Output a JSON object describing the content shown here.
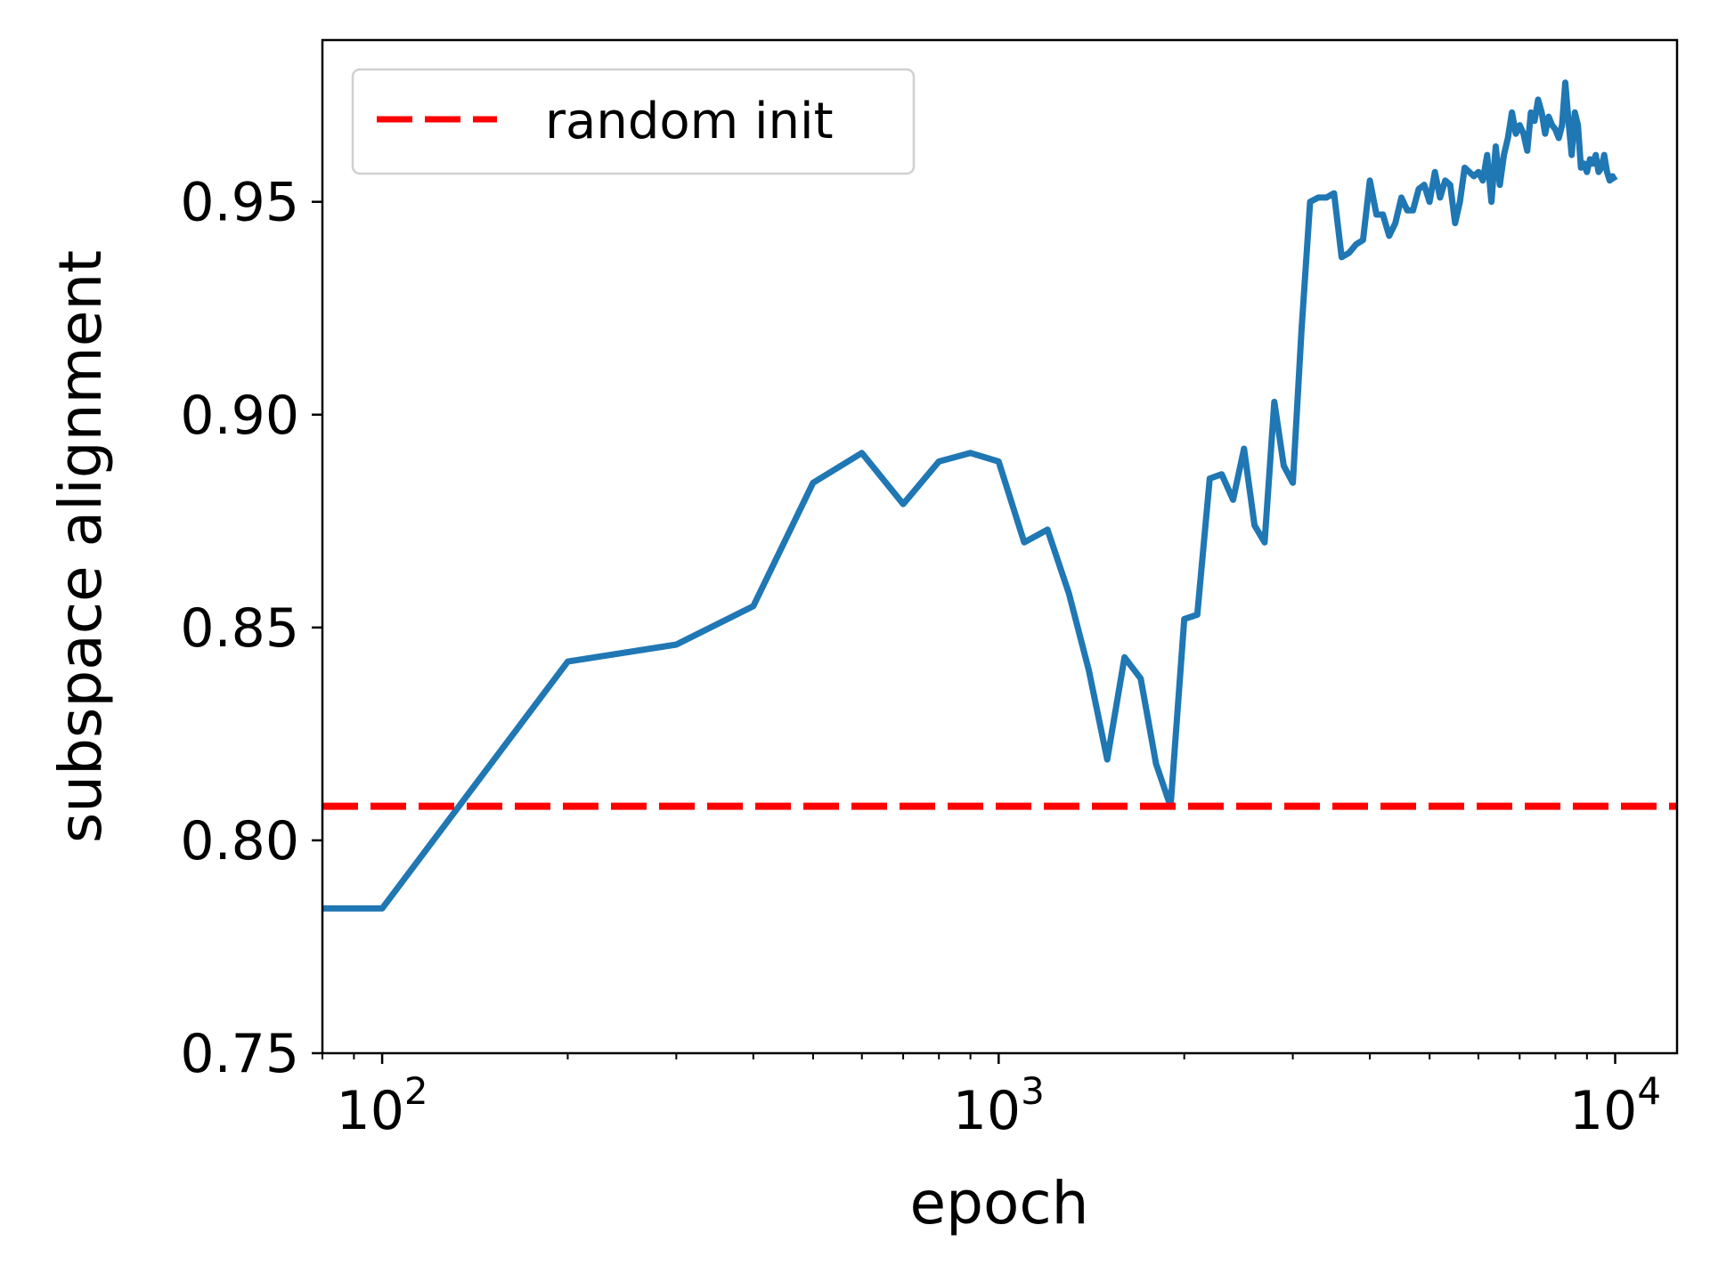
{
  "chart_data": {
    "type": "line",
    "xlabel": "epoch",
    "ylabel": "subspace alignment",
    "xscale": "log",
    "xlim": [
      80,
      12600
    ],
    "ylim": [
      0.75,
      0.988
    ],
    "yticks": [
      "0.75",
      "0.80",
      "0.85",
      "0.90",
      "0.95"
    ],
    "xticks": [
      {
        "value": 100,
        "base": "10",
        "exp": "2"
      },
      {
        "value": 1000,
        "base": "10",
        "exp": "3"
      },
      {
        "value": 10000,
        "base": "10",
        "exp": "4"
      }
    ],
    "grid": false,
    "legend_position": "top-left",
    "colors": {
      "series": "#1f77b4",
      "baseline": "#ff0000"
    },
    "baseline": {
      "name": "random init",
      "value": 0.808
    },
    "series": [
      {
        "x": [
          80,
          100,
          200,
          300,
          400,
          500,
          600,
          700,
          800,
          900,
          1000,
          1100,
          1200,
          1300,
          1400,
          1500,
          1600,
          1700,
          1800,
          1900,
          2000,
          2100,
          2200,
          2300,
          2400,
          2500,
          2600,
          2700,
          2800,
          2900,
          3000,
          3100,
          3200,
          3300,
          3400,
          3500,
          3600,
          3700,
          3800,
          3900,
          4000,
          4100,
          4200,
          4300,
          4400,
          4500,
          4600,
          4700,
          4800,
          4900,
          5000,
          5100,
          5200,
          5300,
          5400,
          5500,
          5600,
          5700,
          5800,
          5900,
          6000,
          6100,
          6200,
          6300,
          6400,
          6500,
          6600,
          6700,
          6800,
          6900,
          7000,
          7100,
          7200,
          7300,
          7400,
          7500,
          7600,
          7700,
          7800,
          7900,
          8000,
          8100,
          8200,
          8300,
          8400,
          8500,
          8600,
          8700,
          8800,
          8900,
          9000,
          9100,
          9200,
          9300,
          9400,
          9500,
          9600,
          9700,
          9800,
          9900,
          10000
        ],
        "y": [
          0.784,
          0.784,
          0.842,
          0.846,
          0.855,
          0.884,
          0.891,
          0.879,
          0.889,
          0.891,
          0.889,
          0.87,
          0.873,
          0.858,
          0.84,
          0.819,
          0.843,
          0.838,
          0.818,
          0.808,
          0.852,
          0.853,
          0.885,
          0.886,
          0.88,
          0.892,
          0.874,
          0.87,
          0.903,
          0.888,
          0.884,
          0.92,
          0.95,
          0.951,
          0.951,
          0.952,
          0.937,
          0.938,
          0.94,
          0.941,
          0.955,
          0.947,
          0.947,
          0.942,
          0.945,
          0.951,
          0.948,
          0.948,
          0.953,
          0.954,
          0.95,
          0.957,
          0.951,
          0.955,
          0.954,
          0.945,
          0.95,
          0.958,
          0.957,
          0.956,
          0.957,
          0.955,
          0.961,
          0.95,
          0.963,
          0.954,
          0.961,
          0.965,
          0.971,
          0.966,
          0.968,
          0.966,
          0.962,
          0.971,
          0.969,
          0.974,
          0.971,
          0.966,
          0.97,
          0.968,
          0.967,
          0.965,
          0.968,
          0.978,
          0.969,
          0.961,
          0.971,
          0.968,
          0.958,
          0.959,
          0.957,
          0.96,
          0.959,
          0.961,
          0.957,
          0.958,
          0.961,
          0.957,
          0.955,
          0.956,
          0.955
        ]
      }
    ]
  }
}
